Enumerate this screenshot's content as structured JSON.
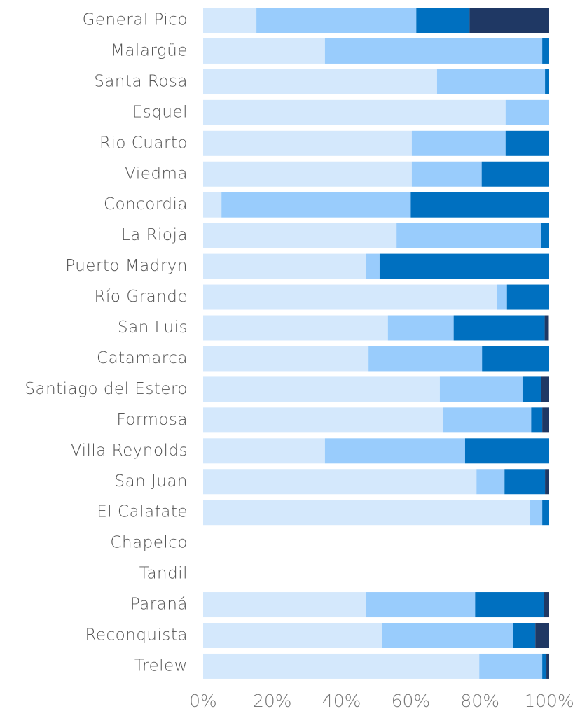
{
  "chart_data": {
    "type": "stacked_bar_horizontal",
    "categories": [
      "General Pico",
      "Malargüe",
      "Santa Rosa",
      "Esquel",
      "Rio Cuarto",
      "Viedma",
      "Concordia",
      "La Rioja",
      "Puerto Madryn",
      "Río Grande",
      "San Luis",
      "Catamarca",
      "Santiago del Estero",
      "Formosa",
      "Villa Reynolds",
      "San Juan",
      "El Calafate",
      "Chapelco",
      "Tandil",
      "Paraná",
      "Reconquista",
      "Trelew"
    ],
    "series": [
      {
        "color": "#d4e8fc",
        "values": [
          15.4,
          35.2,
          67.6,
          87.4,
          60.3,
          60.3,
          5.3,
          55.9,
          47.0,
          85.0,
          53.4,
          47.8,
          68.4,
          69.3,
          35.2,
          79.0,
          94.4,
          null,
          null,
          47.0,
          51.8,
          79.8
        ]
      },
      {
        "color": "#99ccfc",
        "values": [
          46.2,
          62.8,
          31.2,
          12.6,
          27.1,
          20.2,
          54.7,
          41.7,
          4.0,
          2.8,
          19.0,
          32.8,
          23.9,
          25.5,
          40.5,
          8.1,
          3.6,
          null,
          null,
          31.6,
          37.7,
          18.2
        ]
      },
      {
        "color": "#0070c0",
        "values": [
          15.4,
          2.0,
          1.2,
          0,
          12.6,
          19.5,
          40.0,
          2.4,
          49.0,
          12.2,
          26.3,
          19.4,
          5.3,
          3.2,
          24.3,
          11.7,
          2.0,
          null,
          null,
          19.8,
          6.5,
          1.2
        ]
      },
      {
        "color": "#1f3864",
        "values": [
          23.0,
          0,
          0,
          0,
          0,
          0,
          0,
          0,
          0,
          0,
          1.2,
          0,
          2.4,
          2.0,
          0,
          1.2,
          0,
          null,
          null,
          1.6,
          4.0,
          0.8
        ]
      }
    ],
    "xlim": [
      0,
      100
    ],
    "xticks": [
      {
        "value": 0,
        "label": "0%"
      },
      {
        "value": 20,
        "label": "20%"
      },
      {
        "value": 40,
        "label": "40%"
      },
      {
        "value": 60,
        "label": "60%"
      },
      {
        "value": 80,
        "label": "80%"
      },
      {
        "value": 100,
        "label": "100%"
      }
    ]
  }
}
